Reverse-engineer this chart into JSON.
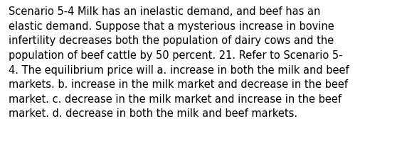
{
  "lines": [
    "Scenario 5-4 Milk has an inelastic demand, and beef has an",
    "elastic demand. Suppose that a mysterious increase in bovine",
    "infertility decreases both the population of dairy cows and the",
    "population of beef cattle by 50 percent. 21. Refer to Scenario 5-",
    "4. The equilibrium price will a. increase in both the milk and beef",
    "markets. b. increase in the milk market and decrease in the beef",
    "market. c. decrease in the milk market and increase in the beef",
    "market. d. decrease in both the milk and beef markets."
  ],
  "background_color": "#ffffff",
  "text_color": "#000000",
  "font_size": 10.5,
  "font_family": "DejaVu Sans"
}
